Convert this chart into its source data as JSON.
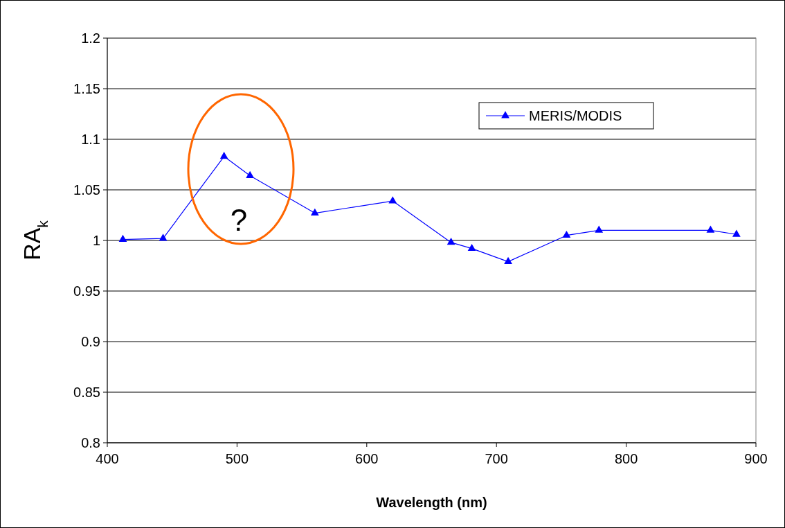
{
  "chart_data": {
    "type": "line",
    "xlabel": "Wavelength (nm)",
    "ylabel": "RA$_{k}$",
    "xlim": [
      400,
      900
    ],
    "xticks": [
      400,
      500,
      600,
      700,
      800,
      900
    ],
    "ylim": [
      0.8,
      1.2
    ],
    "yticks": [
      0.8,
      0.85,
      0.9,
      0.95,
      1,
      1.05,
      1.1,
      1.15,
      1.2
    ],
    "grid": "y",
    "legend": "top right",
    "marker": "triangle",
    "line_style": "solid",
    "x": [
      412,
      443,
      490,
      510,
      560,
      620,
      665,
      681,
      709,
      754,
      779,
      865,
      885
    ],
    "series": [
      {
        "name": "MERIS/MODIS",
        "color": "#0000ff",
        "values": [
          1.001,
          1.002,
          1.083,
          1.064,
          1.027,
          1.039,
          0.998,
          0.992,
          0.979,
          1.005,
          1.01,
          1.01,
          1.006
        ]
      }
    ],
    "annotations": [
      "?"
    ]
  }
}
